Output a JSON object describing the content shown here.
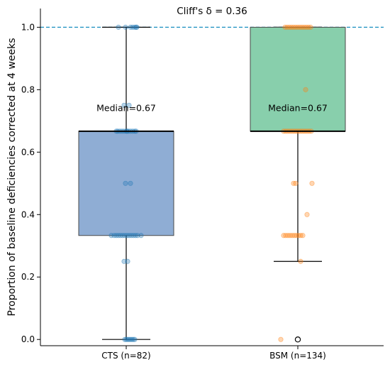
{
  "chart_data": {
    "type": "box",
    "title": "Cliff's δ = 0.36",
    "ylabel": "Proportion of baseline deficiencies corrected at 4 weeks",
    "xlabel": "",
    "ylim": [
      -0.02,
      1.06
    ],
    "yticks": [
      0.0,
      0.2,
      0.4,
      0.6,
      0.8,
      1.0
    ],
    "ytick_labels": [
      "0.0",
      "0.2",
      "0.4",
      "0.6",
      "0.8",
      "1.0"
    ],
    "reference_line": {
      "y": 1.0,
      "style": "dashed",
      "color": "#1a8fc0"
    },
    "groups": [
      {
        "category": "CTS (n=82)",
        "box_color": "#8fadd4",
        "point_color": "#1f77b4",
        "whisker_low": 0.0,
        "q1": 0.333,
        "median": 0.667,
        "q3": 0.667,
        "whisker_high": 1.0,
        "median_annotation": "Median=0.67",
        "outliers": [],
        "points": [
          {
            "x": -0.01,
            "y": 1.0
          },
          {
            "x": 0.06,
            "y": 1.0
          },
          {
            "x": 0.09,
            "y": 1.0
          },
          {
            "x": 0.12,
            "y": 1.0
          },
          {
            "x": 0.15,
            "y": 1.0
          },
          {
            "x": -0.11,
            "y": 1.0
          },
          {
            "x": 0.14,
            "y": 1.0
          },
          {
            "x": -0.03,
            "y": 0.75
          },
          {
            "x": 0.04,
            "y": 0.75
          },
          {
            "x": -0.12,
            "y": 0.667
          },
          {
            "x": -0.09,
            "y": 0.667
          },
          {
            "x": -0.06,
            "y": 0.667
          },
          {
            "x": -0.03,
            "y": 0.667
          },
          {
            "x": 0.0,
            "y": 0.667
          },
          {
            "x": 0.03,
            "y": 0.667
          },
          {
            "x": 0.06,
            "y": 0.667
          },
          {
            "x": 0.09,
            "y": 0.667
          },
          {
            "x": 0.12,
            "y": 0.667
          },
          {
            "x": 0.14,
            "y": 0.667
          },
          {
            "x": -0.14,
            "y": 0.667
          },
          {
            "x": 0.01,
            "y": 0.667
          },
          {
            "x": -0.01,
            "y": 0.5
          },
          {
            "x": 0.06,
            "y": 0.5
          },
          {
            "x": -0.21,
            "y": 0.333
          },
          {
            "x": -0.17,
            "y": 0.333
          },
          {
            "x": -0.14,
            "y": 0.333
          },
          {
            "x": -0.11,
            "y": 0.333
          },
          {
            "x": -0.08,
            "y": 0.333
          },
          {
            "x": -0.05,
            "y": 0.333
          },
          {
            "x": -0.02,
            "y": 0.333
          },
          {
            "x": 0.01,
            "y": 0.333
          },
          {
            "x": 0.04,
            "y": 0.333
          },
          {
            "x": 0.07,
            "y": 0.333
          },
          {
            "x": 0.1,
            "y": 0.333
          },
          {
            "x": 0.13,
            "y": 0.333
          },
          {
            "x": 0.16,
            "y": 0.333
          },
          {
            "x": 0.21,
            "y": 0.333
          },
          {
            "x": -0.03,
            "y": 0.25
          },
          {
            "x": 0.02,
            "y": 0.25
          },
          {
            "x": -0.02,
            "y": 0.0
          },
          {
            "x": 0.0,
            "y": 0.0
          },
          {
            "x": 0.02,
            "y": 0.0
          },
          {
            "x": 0.04,
            "y": 0.0
          },
          {
            "x": 0.06,
            "y": 0.0
          },
          {
            "x": 0.08,
            "y": 0.0
          },
          {
            "x": 0.1,
            "y": 0.0
          },
          {
            "x": 0.12,
            "y": 0.0
          }
        ]
      },
      {
        "category": "BSM (n=134)",
        "box_color": "#88cfac",
        "point_color": "#ff7f0e",
        "whisker_low": 0.25,
        "q1": 0.667,
        "median": 0.667,
        "q3": 1.0,
        "whisker_high": 1.0,
        "median_annotation": "Median=0.67",
        "outliers": [
          0.0
        ],
        "points": [
          {
            "x": -0.18,
            "y": 1.0
          },
          {
            "x": -0.15,
            "y": 1.0
          },
          {
            "x": -0.12,
            "y": 1.0
          },
          {
            "x": -0.09,
            "y": 1.0
          },
          {
            "x": -0.06,
            "y": 1.0
          },
          {
            "x": -0.03,
            "y": 1.0
          },
          {
            "x": 0.0,
            "y": 1.0
          },
          {
            "x": 0.03,
            "y": 1.0
          },
          {
            "x": 0.06,
            "y": 1.0
          },
          {
            "x": 0.09,
            "y": 1.0
          },
          {
            "x": 0.12,
            "y": 1.0
          },
          {
            "x": 0.15,
            "y": 1.0
          },
          {
            "x": 0.18,
            "y": 1.0
          },
          {
            "x": 0.11,
            "y": 0.8
          },
          {
            "x": -0.2,
            "y": 0.667
          },
          {
            "x": -0.17,
            "y": 0.667
          },
          {
            "x": -0.14,
            "y": 0.667
          },
          {
            "x": -0.11,
            "y": 0.667
          },
          {
            "x": -0.08,
            "y": 0.667
          },
          {
            "x": -0.05,
            "y": 0.667
          },
          {
            "x": -0.02,
            "y": 0.667
          },
          {
            "x": 0.01,
            "y": 0.667
          },
          {
            "x": 0.04,
            "y": 0.667
          },
          {
            "x": 0.07,
            "y": 0.667
          },
          {
            "x": 0.1,
            "y": 0.667
          },
          {
            "x": 0.13,
            "y": 0.667
          },
          {
            "x": 0.16,
            "y": 0.667
          },
          {
            "x": 0.19,
            "y": 0.667
          },
          {
            "x": -0.06,
            "y": 0.5
          },
          {
            "x": -0.03,
            "y": 0.5
          },
          {
            "x": 0.2,
            "y": 0.5
          },
          {
            "x": 0.13,
            "y": 0.4
          },
          {
            "x": -0.2,
            "y": 0.333
          },
          {
            "x": -0.17,
            "y": 0.333
          },
          {
            "x": -0.14,
            "y": 0.333
          },
          {
            "x": -0.11,
            "y": 0.333
          },
          {
            "x": -0.08,
            "y": 0.333
          },
          {
            "x": -0.05,
            "y": 0.333
          },
          {
            "x": -0.02,
            "y": 0.333
          },
          {
            "x": 0.01,
            "y": 0.333
          },
          {
            "x": 0.04,
            "y": 0.333
          },
          {
            "x": 0.07,
            "y": 0.333
          },
          {
            "x": 0.04,
            "y": 0.25
          },
          {
            "x": -0.24,
            "y": 0.0
          }
        ]
      }
    ]
  }
}
